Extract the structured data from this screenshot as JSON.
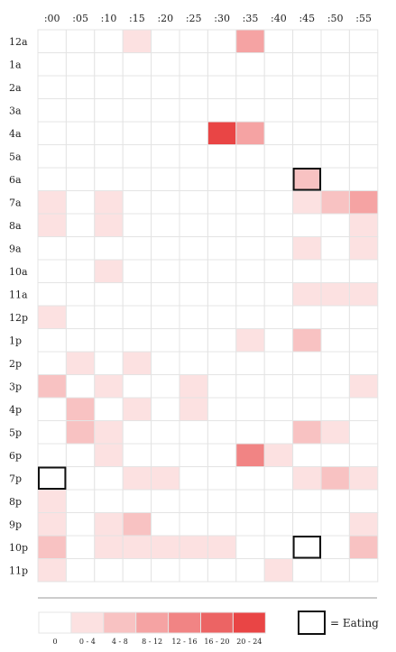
{
  "chart_data": {
    "type": "heatmap",
    "columns": [
      ":00",
      ":05",
      ":10",
      ":15",
      ":20",
      ":25",
      ":30",
      ":35",
      ":40",
      ":45",
      ":50",
      ":55"
    ],
    "rows": [
      "12a",
      "1a",
      "2a",
      "3a",
      "4a",
      "5a",
      "6a",
      "7a",
      "8a",
      "9a",
      "10a",
      "11a",
      "12p",
      "1p",
      "2p",
      "3p",
      "4p",
      "5p",
      "6p",
      "7p",
      "8p",
      "9p",
      "10p",
      "11p"
    ],
    "levels": [
      [
        0,
        0,
        0,
        1,
        0,
        0,
        0,
        3,
        0,
        0,
        0,
        0
      ],
      [
        0,
        0,
        0,
        0,
        0,
        0,
        0,
        0,
        0,
        0,
        0,
        0
      ],
      [
        0,
        0,
        0,
        0,
        0,
        0,
        0,
        0,
        0,
        0,
        0,
        0
      ],
      [
        0,
        0,
        0,
        0,
        0,
        0,
        0,
        0,
        0,
        0,
        0,
        0
      ],
      [
        0,
        0,
        0,
        0,
        0,
        0,
        6,
        3,
        0,
        0,
        0,
        0
      ],
      [
        0,
        0,
        0,
        0,
        0,
        0,
        0,
        0,
        0,
        0,
        0,
        0
      ],
      [
        0,
        0,
        0,
        0,
        0,
        0,
        0,
        0,
        0,
        2,
        0,
        0
      ],
      [
        1,
        0,
        1,
        0,
        0,
        0,
        0,
        0,
        0,
        1,
        2,
        3
      ],
      [
        1,
        0,
        1,
        0,
        0,
        0,
        0,
        0,
        0,
        0,
        0,
        1
      ],
      [
        0,
        0,
        0,
        0,
        0,
        0,
        0,
        0,
        0,
        1,
        0,
        1
      ],
      [
        0,
        0,
        1,
        0,
        0,
        0,
        0,
        0,
        0,
        0,
        0,
        0
      ],
      [
        0,
        0,
        0,
        0,
        0,
        0,
        0,
        0,
        0,
        1,
        1,
        1
      ],
      [
        1,
        0,
        0,
        0,
        0,
        0,
        0,
        0,
        0,
        0,
        0,
        0
      ],
      [
        0,
        0,
        0,
        0,
        0,
        0,
        0,
        1,
        0,
        2,
        0,
        0
      ],
      [
        0,
        1,
        0,
        1,
        0,
        0,
        0,
        0,
        0,
        0,
        0,
        0
      ],
      [
        2,
        0,
        1,
        0,
        0,
        1,
        0,
        0,
        0,
        0,
        0,
        1
      ],
      [
        0,
        2,
        0,
        1,
        0,
        1,
        0,
        0,
        0,
        0,
        0,
        0
      ],
      [
        0,
        2,
        1,
        0,
        0,
        0,
        0,
        0,
        0,
        2,
        1,
        0
      ],
      [
        0,
        0,
        1,
        0,
        0,
        0,
        0,
        4,
        1,
        0,
        0,
        0
      ],
      [
        0,
        0,
        0,
        1,
        1,
        0,
        0,
        0,
        0,
        1,
        2,
        1
      ],
      [
        1,
        0,
        0,
        0,
        0,
        0,
        0,
        0,
        0,
        0,
        0,
        0
      ],
      [
        1,
        0,
        1,
        2,
        0,
        0,
        0,
        0,
        0,
        0,
        0,
        1
      ],
      [
        2,
        0,
        1,
        1,
        1,
        1,
        1,
        0,
        0,
        0,
        0,
        2
      ],
      [
        1,
        0,
        0,
        0,
        0,
        0,
        0,
        0,
        1,
        0,
        0,
        0
      ]
    ],
    "eating": [
      {
        "row": "6a",
        "col": ":45"
      },
      {
        "row": "7p",
        "col": ":00"
      },
      {
        "row": "10p",
        "col": ":45"
      }
    ],
    "legend": {
      "bins": [
        "0",
        "0 - 4",
        "4 - 8",
        "8 - 12",
        "12 - 16",
        "16 - 20",
        "20 - 24"
      ],
      "colors": [
        "#ffffff",
        "#fce1e1",
        "#f8c2c2",
        "#f5a3a3",
        "#f18484",
        "#ec6464",
        "#e94545"
      ],
      "eating_label": "= Eating"
    }
  }
}
